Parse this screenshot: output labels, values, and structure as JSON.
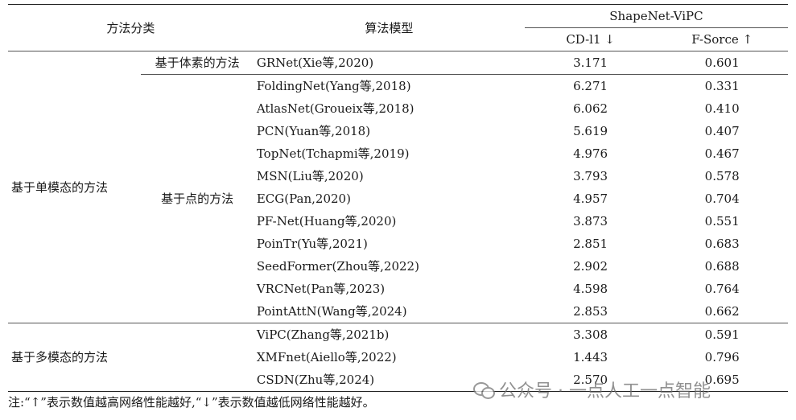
{
  "table": {
    "header": {
      "category": "方法分类",
      "model": "算法模型",
      "dataset": "ShapeNet-ViPC",
      "cd": "CD-l1 ↓",
      "fscore": "F-Sorce ↑"
    },
    "groups": {
      "single_modal": "基于单模态的方法",
      "multi_modal": "基于多模态的方法",
      "voxel": "基于体素的方法",
      "point": "基于点的方法"
    },
    "rows": [
      {
        "model": "GRNet(Xie等,2020)",
        "cd": "3.171",
        "fscore": "0.601"
      },
      {
        "model": "FoldingNet(Yang等,2018)",
        "cd": "6.271",
        "fscore": "0.331"
      },
      {
        "model": "AtlasNet(Groueix等,2018)",
        "cd": "6.062",
        "fscore": "0.410"
      },
      {
        "model": "PCN(Yuan等,2018)",
        "cd": "5.619",
        "fscore": "0.407"
      },
      {
        "model": "TopNet(Tchapmi等,2019)",
        "cd": "4.976",
        "fscore": "0.467"
      },
      {
        "model": "MSN(Liu等,2020)",
        "cd": "3.793",
        "fscore": "0.578"
      },
      {
        "model": "ECG(Pan,2020)",
        "cd": "4.957",
        "fscore": "0.704"
      },
      {
        "model": "PF-Net(Huang等,2020)",
        "cd": "3.873",
        "fscore": "0.551"
      },
      {
        "model": "PoinTr(Yu等,2021)",
        "cd": "2.851",
        "fscore": "0.683"
      },
      {
        "model": "SeedFormer(Zhou等,2022)",
        "cd": "2.902",
        "fscore": "0.688"
      },
      {
        "model": "VRCNet(Pan等,2023)",
        "cd": "4.598",
        "fscore": "0.764"
      },
      {
        "model": "PointAttN(Wang等,2024)",
        "cd": "2.853",
        "fscore": "0.662"
      },
      {
        "model": "ViPC(Zhang等,2021b)",
        "cd": "3.308",
        "fscore": "0.591"
      },
      {
        "model": "XMFnet(Aiello等,2022)",
        "cd": "1.443",
        "fscore": "0.796"
      },
      {
        "model": "CSDN(Zhu等,2024)",
        "cd": "2.570",
        "fscore": "0.695"
      }
    ]
  },
  "note": "注:“↑”表示数值越高网络性能越好,“↓”表示数值越低网络性能越好。",
  "watermark": "公众号 · 一点人工一点智能"
}
